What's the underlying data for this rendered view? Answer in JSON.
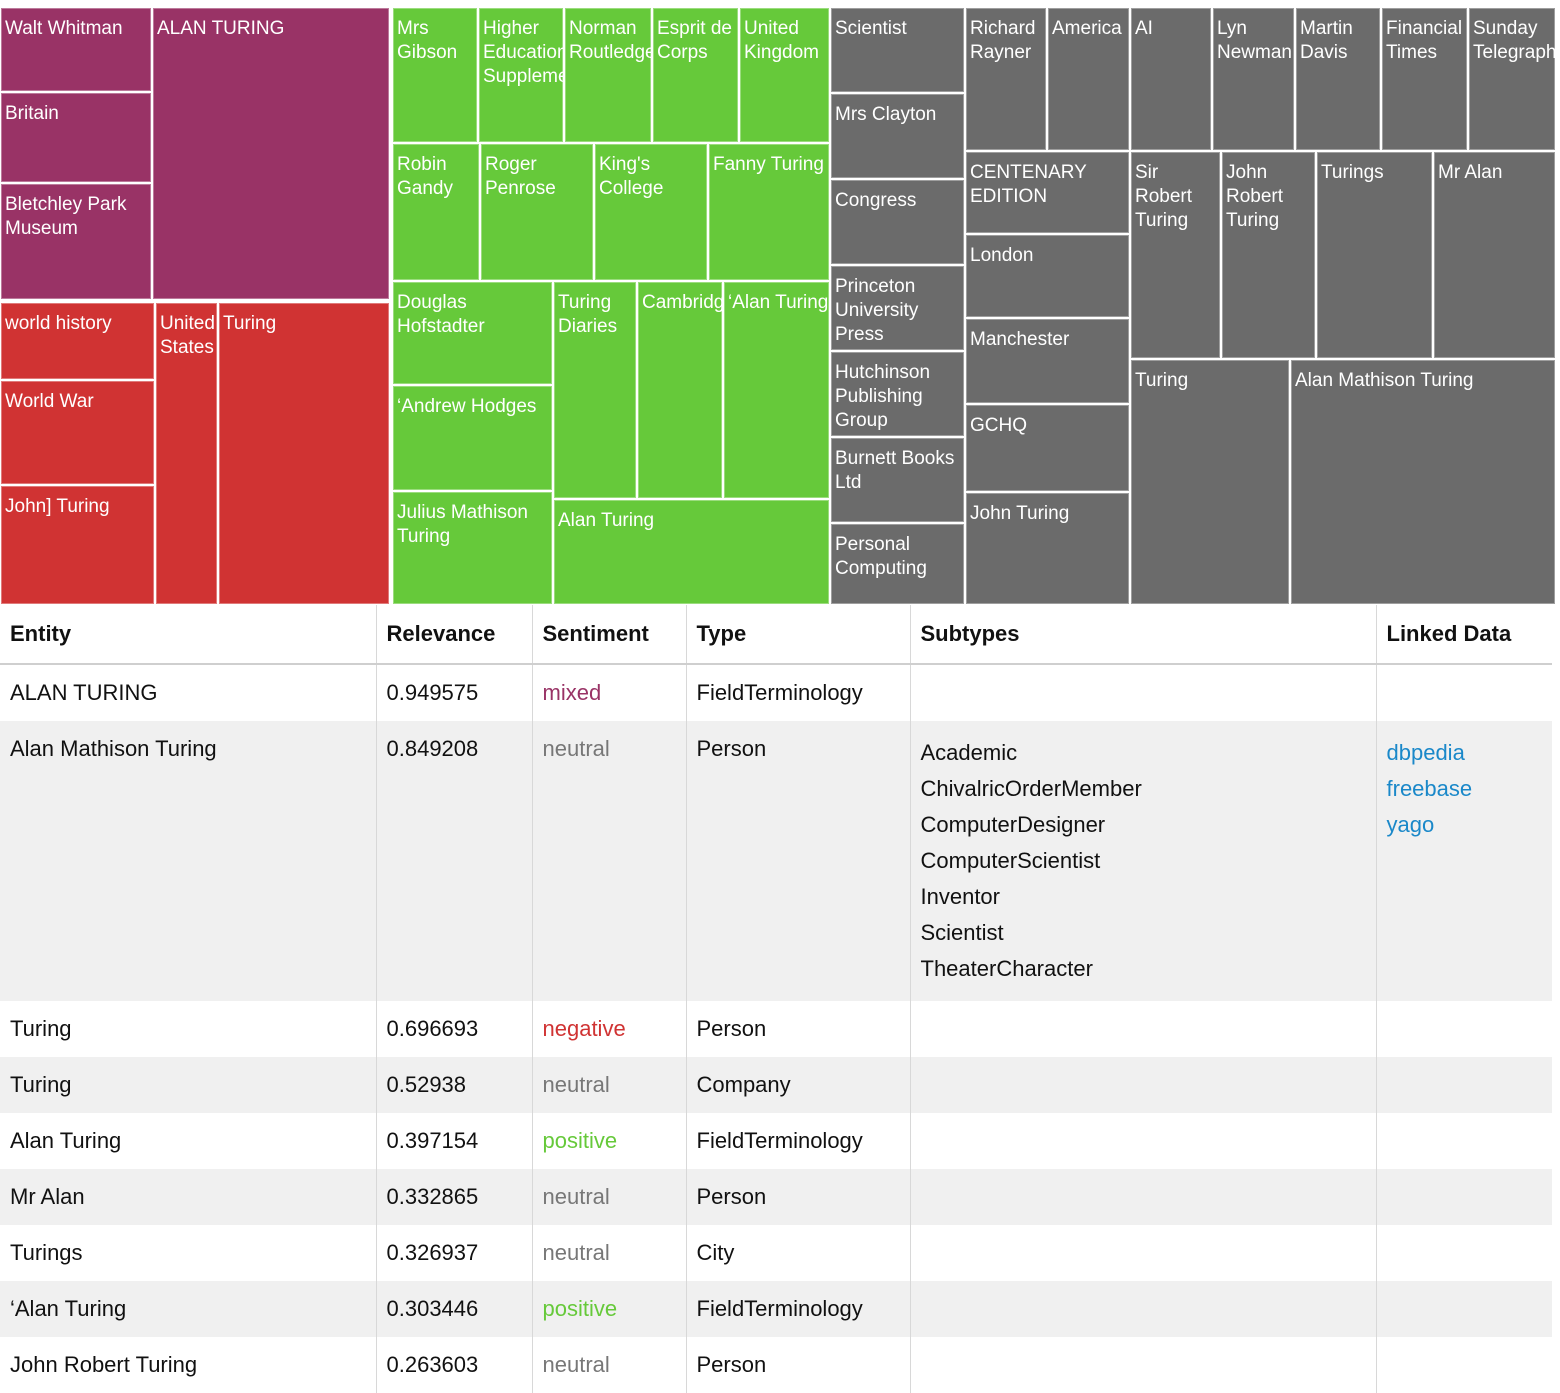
{
  "treemap": {
    "colors": {
      "mixed": "#993366",
      "negative": "#d03333",
      "positive": "#66c93a",
      "neutral": "#6b6b6b"
    },
    "tiles": [
      {
        "label": "Walt Whitman",
        "group": "mixed"
      },
      {
        "label": "Britain",
        "group": "mixed"
      },
      {
        "label": "Bletchley Park Museum",
        "group": "mixed"
      },
      {
        "label": "ALAN TURING",
        "group": "mixed"
      },
      {
        "label": "world history",
        "group": "negative"
      },
      {
        "label": "World War",
        "group": "negative"
      },
      {
        "label": "John] Turing",
        "group": "negative"
      },
      {
        "label": "United States",
        "group": "negative"
      },
      {
        "label": "Turing",
        "group": "negative"
      },
      {
        "label": "Mrs Gibson",
        "group": "positive"
      },
      {
        "label": "Higher Education Supplement",
        "group": "positive"
      },
      {
        "label": "Norman Routledge",
        "group": "positive"
      },
      {
        "label": "Esprit de Corps",
        "group": "positive"
      },
      {
        "label": "United Kingdom",
        "group": "positive"
      },
      {
        "label": "Robin Gandy",
        "group": "positive"
      },
      {
        "label": "Roger Penrose",
        "group": "positive"
      },
      {
        "label": "King's College",
        "group": "positive"
      },
      {
        "label": "Fanny Turing",
        "group": "positive"
      },
      {
        "label": "Douglas Hofstadter",
        "group": "positive"
      },
      {
        "label": "‘Andrew Hodges",
        "group": "positive"
      },
      {
        "label": "Julius Mathison Turing",
        "group": "positive"
      },
      {
        "label": "Turing Diaries",
        "group": "positive"
      },
      {
        "label": "Cambridge",
        "group": "positive"
      },
      {
        "label": "‘Alan Turing",
        "group": "positive"
      },
      {
        "label": "Alan Turing",
        "group": "positive"
      },
      {
        "label": "Scientist",
        "group": "neutral"
      },
      {
        "label": "Mrs Clayton",
        "group": "neutral"
      },
      {
        "label": "Congress",
        "group": "neutral"
      },
      {
        "label": "Princeton University Press",
        "group": "neutral"
      },
      {
        "label": "Hutchinson Publishing Group",
        "group": "neutral"
      },
      {
        "label": "Burnett Books Ltd",
        "group": "neutral"
      },
      {
        "label": "Personal Computing",
        "group": "neutral"
      },
      {
        "label": "Richard Rayner",
        "group": "neutral"
      },
      {
        "label": "America",
        "group": "neutral"
      },
      {
        "label": "AI",
        "group": "neutral"
      },
      {
        "label": "Lyn Newman",
        "group": "neutral"
      },
      {
        "label": "Martin Davis",
        "group": "neutral"
      },
      {
        "label": "Financial Times",
        "group": "neutral"
      },
      {
        "label": "Sunday Telegraph",
        "group": "neutral"
      },
      {
        "label": "CENTENARY EDITION",
        "group": "neutral"
      },
      {
        "label": "London",
        "group": "neutral"
      },
      {
        "label": "Manchester",
        "group": "neutral"
      },
      {
        "label": "GCHQ",
        "group": "neutral"
      },
      {
        "label": "John Turing",
        "group": "neutral"
      },
      {
        "label": "Sir Robert Turing",
        "group": "neutral"
      },
      {
        "label": "John Robert Turing",
        "group": "neutral"
      },
      {
        "label": "Turings",
        "group": "neutral"
      },
      {
        "label": "Mr Alan",
        "group": "neutral"
      },
      {
        "label": "Turing",
        "group": "neutral"
      },
      {
        "label": "Alan Mathison Turing",
        "group": "neutral"
      }
    ]
  },
  "table": {
    "headers": [
      "Entity",
      "Relevance",
      "Sentiment",
      "Type",
      "Subtypes",
      "Linked Data"
    ],
    "rows": [
      {
        "entity": "ALAN TURING",
        "relevance": "0.949575",
        "sentiment": "mixed",
        "type": "FieldTerminology",
        "subtypes": [],
        "links": []
      },
      {
        "entity": "Alan Mathison Turing",
        "relevance": "0.849208",
        "sentiment": "neutral",
        "type": "Person",
        "subtypes": [
          "Academic",
          "ChivalricOrderMember",
          "ComputerDesigner",
          "ComputerScientist",
          "Inventor",
          "Scientist",
          "TheaterCharacter"
        ],
        "links": [
          "dbpedia",
          "freebase",
          "yago"
        ]
      },
      {
        "entity": "Turing",
        "relevance": "0.696693",
        "sentiment": "negative",
        "type": "Person",
        "subtypes": [],
        "links": []
      },
      {
        "entity": "Turing",
        "relevance": "0.52938",
        "sentiment": "neutral",
        "type": "Company",
        "subtypes": [],
        "links": []
      },
      {
        "entity": "Alan Turing",
        "relevance": "0.397154",
        "sentiment": "positive",
        "type": "FieldTerminology",
        "subtypes": [],
        "links": []
      },
      {
        "entity": "Mr Alan",
        "relevance": "0.332865",
        "sentiment": "neutral",
        "type": "Person",
        "subtypes": [],
        "links": []
      },
      {
        "entity": "Turings",
        "relevance": "0.326937",
        "sentiment": "neutral",
        "type": "City",
        "subtypes": [],
        "links": []
      },
      {
        "entity": "‘Alan Turing",
        "relevance": "0.303446",
        "sentiment": "positive",
        "type": "FieldTerminology",
        "subtypes": [],
        "links": []
      },
      {
        "entity": "John Robert Turing",
        "relevance": "0.263603",
        "sentiment": "neutral",
        "type": "Person",
        "subtypes": [],
        "links": []
      }
    ]
  }
}
